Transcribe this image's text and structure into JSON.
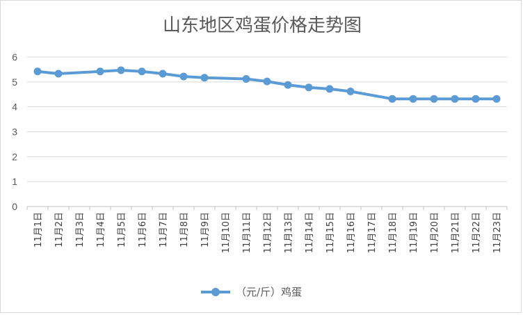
{
  "chart_data": {
    "type": "line",
    "title": "山东地区鸡蛋价格走势图",
    "categories": [
      "11月1日",
      "11月2日",
      "11月3日",
      "11月4日",
      "11月5日",
      "11月6日",
      "11月7日",
      "11月8日",
      "11月9日",
      "11月10日",
      "11月11日",
      "11月12日",
      "11月13日",
      "11月14日",
      "11月15日",
      "11月16日",
      "11月17日",
      "11月18日",
      "11月19日",
      "11月20日",
      "11月21日",
      "11月22日",
      "11月23日"
    ],
    "series": [
      {
        "name": "（元/斤）鸡蛋",
        "color": "#5b9bd5",
        "values": [
          5.42,
          5.33,
          null,
          5.42,
          5.47,
          5.42,
          5.33,
          5.22,
          5.17,
          null,
          5.12,
          5.02,
          4.88,
          4.78,
          4.72,
          4.62,
          null,
          4.32,
          4.32,
          4.32,
          4.32,
          4.32,
          4.32
        ]
      }
    ],
    "yticks": [
      "0",
      "1",
      "2",
      "3",
      "4",
      "5",
      "6"
    ],
    "ylim": [
      0,
      6
    ],
    "grid": "horizontal",
    "legend_position": "bottom"
  }
}
